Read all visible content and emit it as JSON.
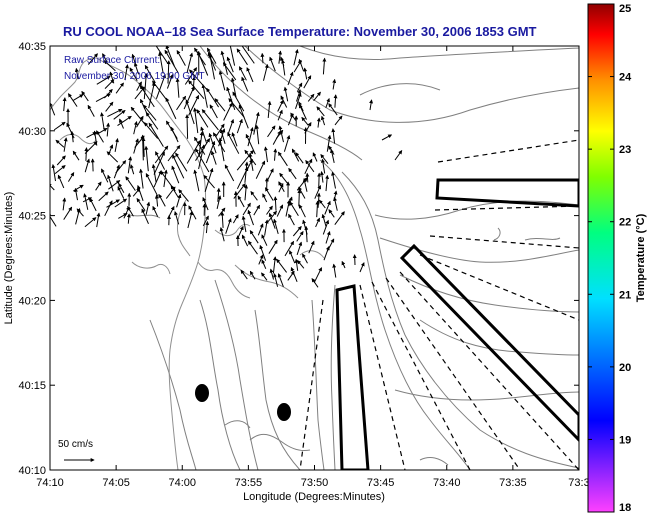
{
  "title": "RU COOL  NOAA–18  Sea Surface Temperature:  November 30, 2006 1853 GMT",
  "inset": {
    "line1": "Raw Surface Current:",
    "line2": "November 30, 2006 19:00 GMT"
  },
  "scale_label": "50 cm/s",
  "axes": {
    "xlabel": "Longitude (Degrees:Minutes)",
    "ylabel": "Latitude (Degrees:Minutes)",
    "xticks": [
      "74:10",
      "74:05",
      "74:00",
      "73:55",
      "73:50",
      "73:45",
      "73:40",
      "73:35",
      "73:3"
    ],
    "yticks": [
      "40:35",
      "40:30",
      "40:25",
      "40:20",
      "40:15",
      "40:10"
    ]
  },
  "colorbar": {
    "label": "Temperature (°C)",
    "ticks": [
      "25",
      "24",
      "23",
      "22",
      "21",
      "20",
      "19",
      "18"
    ],
    "min": 18,
    "max": 25
  },
  "colors": {
    "title": "#1a1aa0",
    "contour": "#808080",
    "frame": "#000000"
  }
}
